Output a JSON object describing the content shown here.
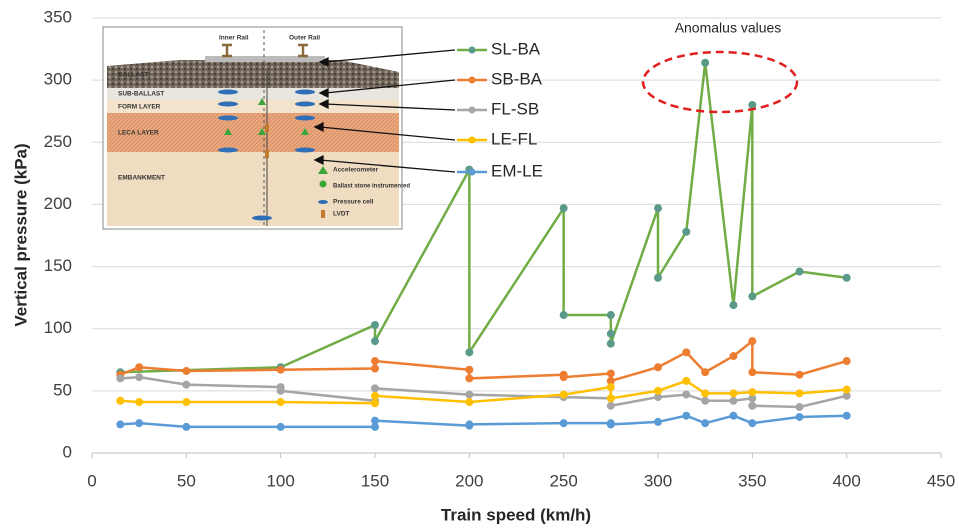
{
  "chart_data": {
    "type": "line",
    "x_label": "Train speed (km/h)",
    "y_label": "Vertical pressure (kPa)",
    "xlim": [
      0,
      450
    ],
    "ylim": [
      0,
      350
    ],
    "xticks": [
      0,
      50,
      100,
      150,
      200,
      250,
      300,
      350,
      400,
      450
    ],
    "yticks": [
      0,
      50,
      100,
      150,
      200,
      250,
      300,
      350
    ],
    "grid": true,
    "annotation": "Anomalus values",
    "series": [
      {
        "name": "SL-BA",
        "color": "#70ad47",
        "marker_color": "#5a9a8a",
        "x": [
          15,
          100,
          150,
          150,
          200,
          200,
          250,
          250,
          275,
          275,
          275,
          300,
          300,
          315,
          325,
          340,
          350,
          350,
          375,
          400
        ],
        "values": [
          65,
          69,
          103,
          90,
          228,
          81,
          197,
          111,
          111,
          96,
          88,
          197,
          141,
          178,
          314,
          119,
          280,
          126,
          146,
          141
        ]
      },
      {
        "name": "SB-BA",
        "color": "#ed7d31",
        "marker_color": "#ed7d31",
        "x": [
          15,
          25,
          50,
          100,
          150,
          150,
          200,
          200,
          250,
          250,
          275,
          275,
          300,
          315,
          325,
          340,
          350,
          350,
          375,
          400
        ],
        "values": [
          63,
          69,
          66,
          67,
          68,
          74,
          67,
          60,
          63,
          61,
          64,
          58,
          69,
          81,
          65,
          78,
          90,
          65,
          63,
          74
        ]
      },
      {
        "name": "FL-SB",
        "color": "#a5a5a5",
        "marker_color": "#a5a5a5",
        "x": [
          15,
          25,
          50,
          100,
          100,
          150,
          150,
          200,
          250,
          275,
          275,
          300,
          315,
          325,
          340,
          350,
          350,
          375,
          400
        ],
        "values": [
          60,
          61,
          55,
          53,
          50,
          42,
          52,
          47,
          45,
          44,
          38,
          45,
          47,
          42,
          42,
          44,
          38,
          37,
          46
        ]
      },
      {
        "name": "LE-FL",
        "color": "#ffc000",
        "marker_color": "#ffc000",
        "x": [
          15,
          25,
          50,
          100,
          150,
          150,
          200,
          250,
          275,
          275,
          300,
          315,
          325,
          340,
          350,
          375,
          400
        ],
        "values": [
          42,
          41,
          41,
          41,
          40,
          46,
          41,
          47,
          53,
          44,
          50,
          58,
          48,
          48,
          49,
          48,
          51
        ]
      },
      {
        "name": "EM-LE",
        "color": "#5b9bd5",
        "marker_color": "#5b9bd5",
        "x": [
          15,
          25,
          50,
          100,
          150,
          150,
          200,
          200,
          250,
          275,
          275,
          300,
          315,
          325,
          340,
          350,
          375,
          400
        ],
        "values": [
          23,
          24,
          21,
          21,
          21,
          26,
          22,
          23,
          24,
          24,
          23,
          25,
          30,
          24,
          30,
          24,
          29,
          30
        ]
      }
    ],
    "inset": {
      "rails": [
        "Inner Rail",
        "Outer Rail"
      ],
      "layers": [
        "BALLAST",
        "SUB-BALLAST",
        "FORM LAYER",
        "LECA LAYER",
        "EMBANKMENT"
      ],
      "legend": [
        "Accelerometer",
        "Ballast stone instrumented",
        "Pressure cell",
        "LVDT"
      ]
    }
  }
}
